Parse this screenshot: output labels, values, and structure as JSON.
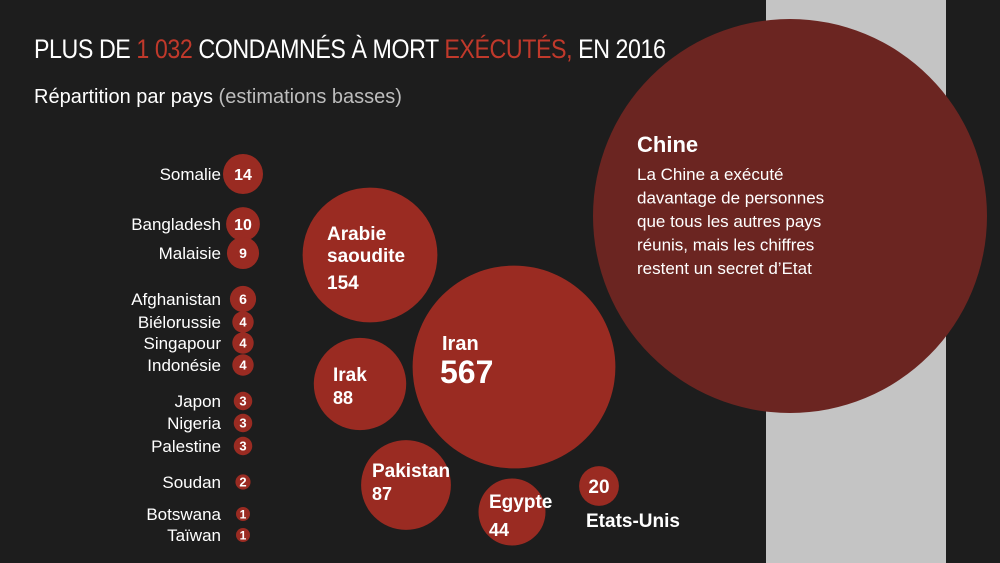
{
  "header": {
    "title_part1": "PLUS DE ",
    "title_number": "1 032",
    "title_part2": " CONDAMNÉS À MORT ",
    "title_highlight": "EXÉCUTÉS,",
    "title_part3": " EN 2016",
    "subtitle_main": "Répartition par pays",
    "subtitle_note": " (estimations basses)"
  },
  "colors": {
    "background": "#1d1d1d",
    "bubble": "#9a2b22",
    "bubble_chine": "#6b2521",
    "accent_red": "#c0392b",
    "band": "#c4c4c4"
  },
  "chart_data": {
    "type": "bubble",
    "small_countries": [
      {
        "country": "Somalie",
        "value": 14
      },
      {
        "country": "Bangladesh",
        "value": 10
      },
      {
        "country": "Malaisie",
        "value": 9
      },
      {
        "country": "Afghanistan",
        "value": 6
      },
      {
        "country": "Biélorussie",
        "value": 4
      },
      {
        "country": "Singapour",
        "value": 4
      },
      {
        "country": "Indonésie",
        "value": 4
      },
      {
        "country": "Japon",
        "value": 3
      },
      {
        "country": "Nigeria",
        "value": 3
      },
      {
        "country": "Palestine",
        "value": 3
      },
      {
        "country": "Soudan",
        "value": 2
      },
      {
        "country": "Botswana",
        "value": 1
      },
      {
        "country": "Taïwan",
        "value": 1
      }
    ],
    "big_countries": [
      {
        "country": "Arabie saoudite",
        "value": 154
      },
      {
        "country": "Iran",
        "value": 567
      },
      {
        "country": "Irak",
        "value": 88
      },
      {
        "country": "Pakistan",
        "value": 87
      },
      {
        "country": "Egypte",
        "value": 44
      },
      {
        "country": "Etats-Unis",
        "value": 20
      }
    ],
    "china": {
      "country": "Chine",
      "note": [
        "La Chine a exécuté",
        "davantage de personnes",
        "que tous les autres pays",
        "réunis, mais les chiffres",
        "restent un secret d’Etat"
      ]
    }
  }
}
